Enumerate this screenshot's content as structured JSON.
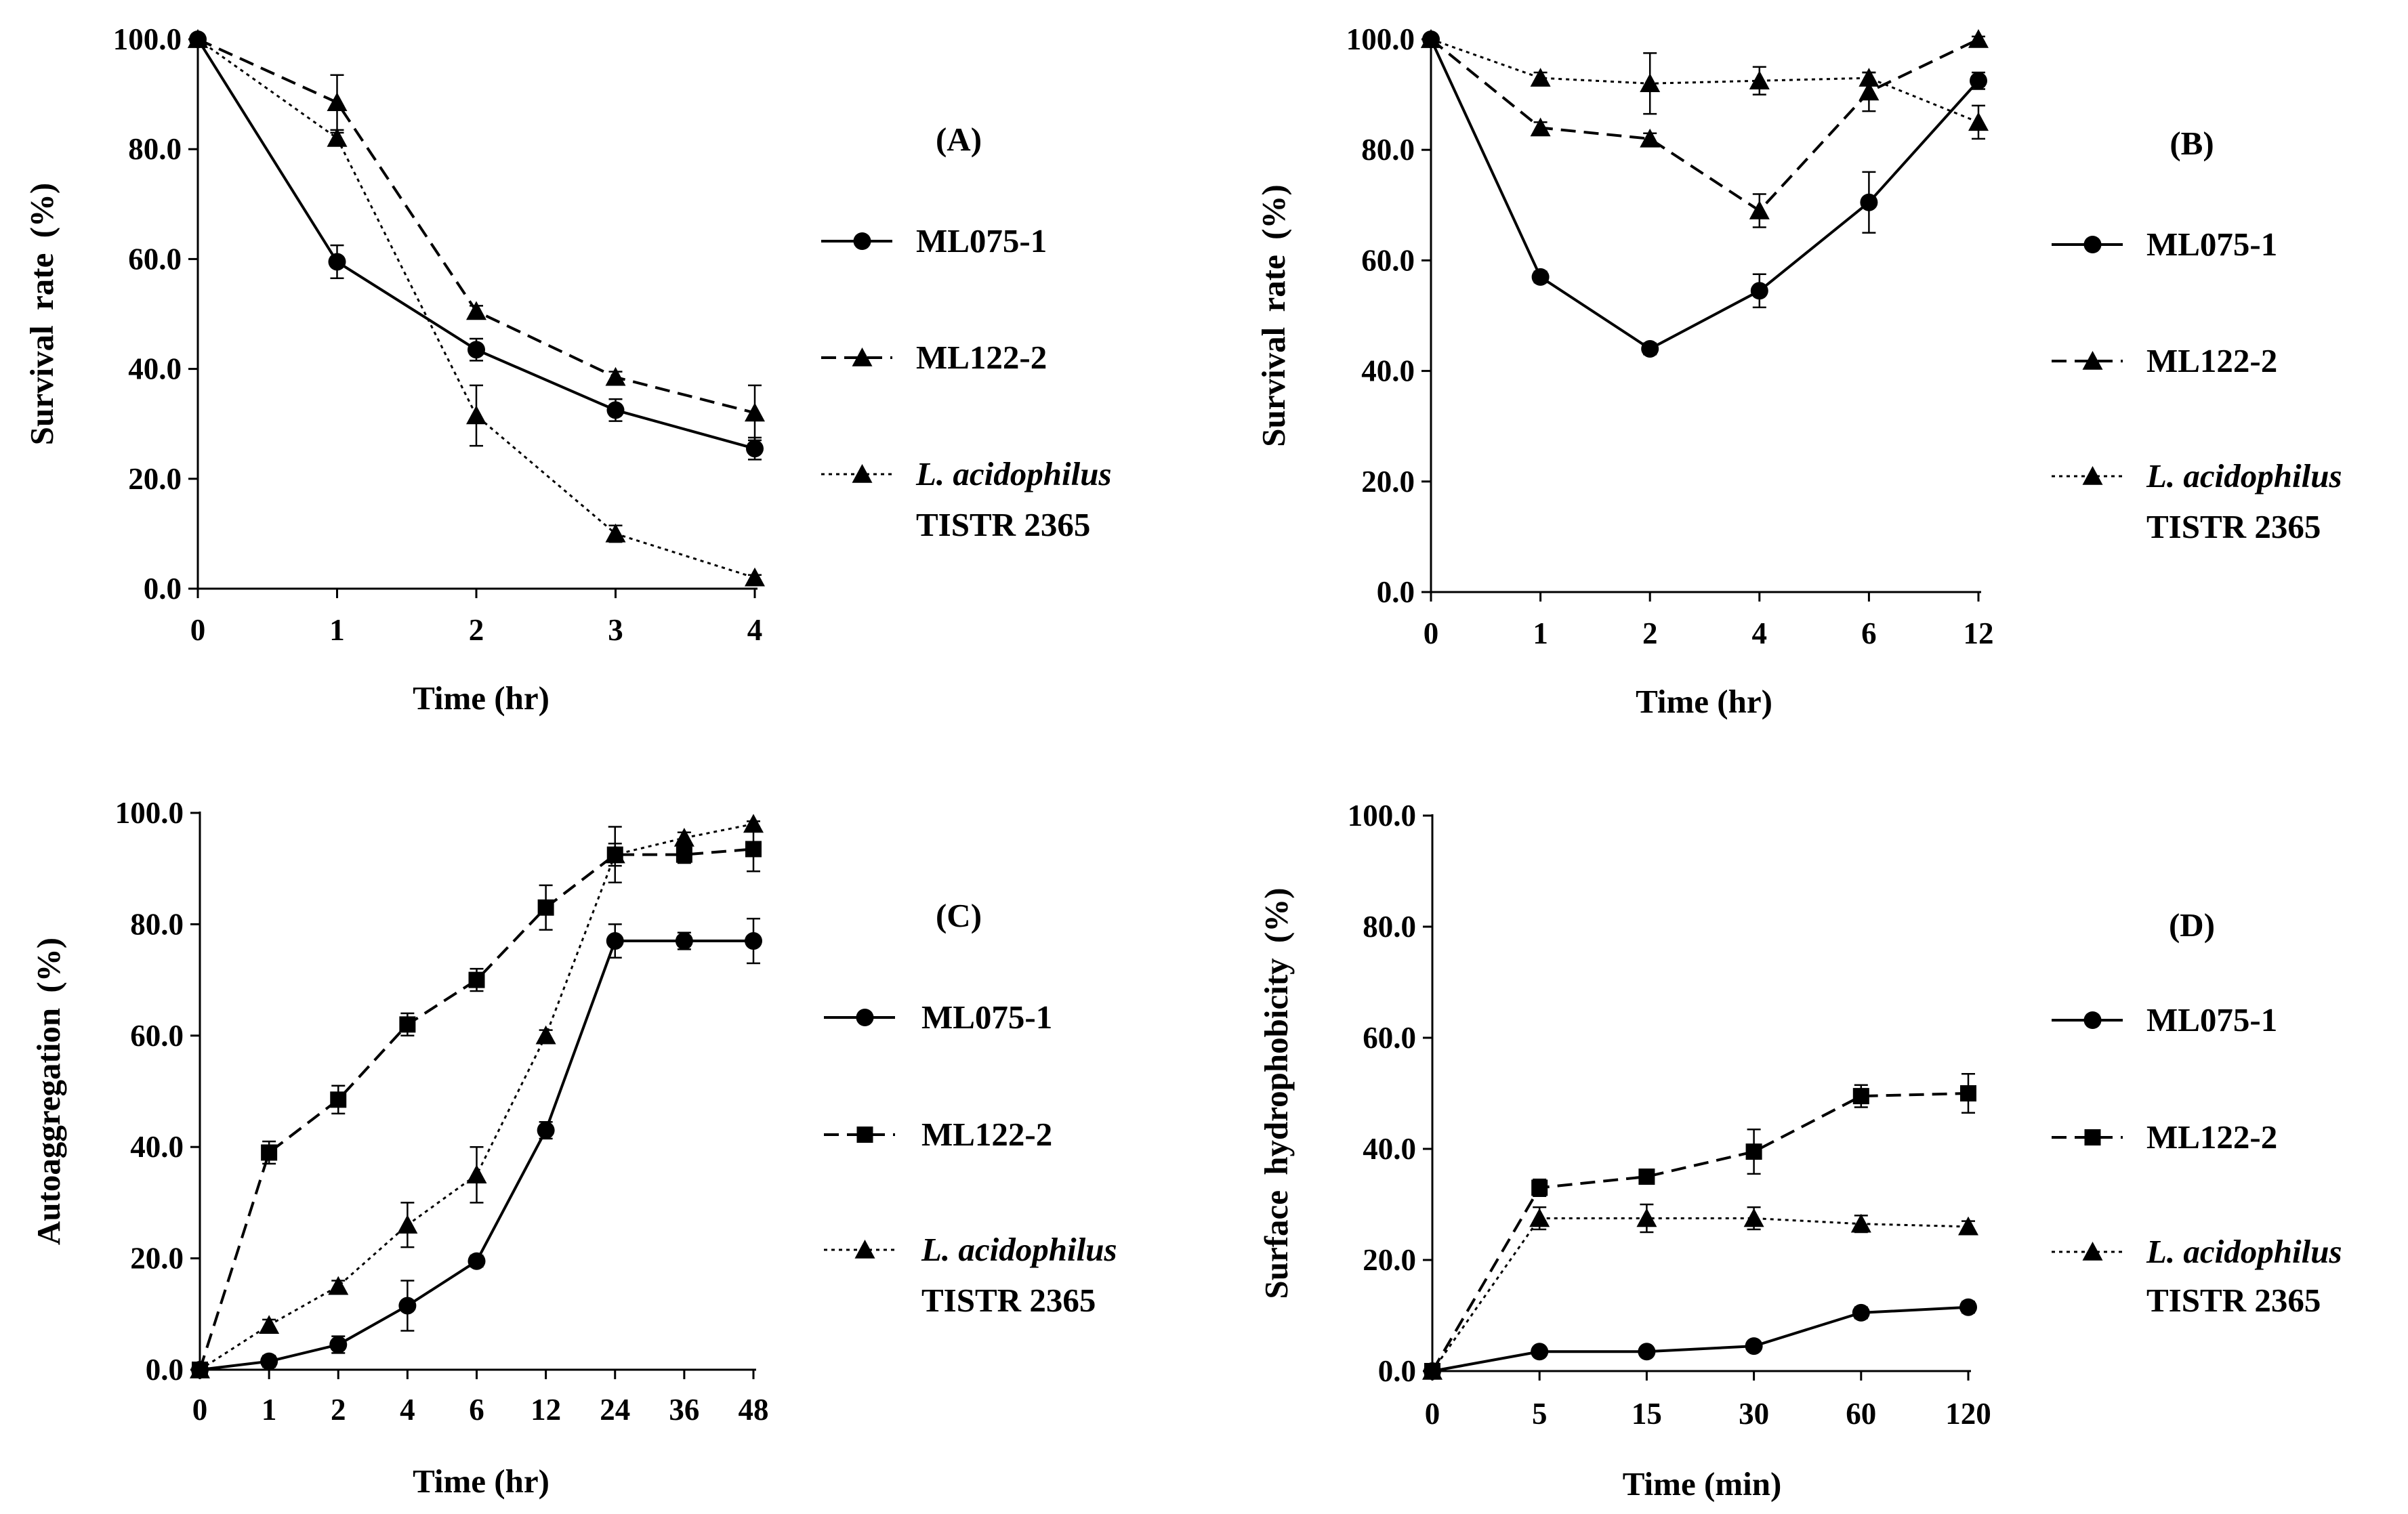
{
  "chart_data": [
    {
      "panel": "(A)",
      "type": "line",
      "xlabel": "Time (hr)",
      "ylabel": "Survival rate (%)",
      "ylim": [
        0,
        100
      ],
      "categories": [
        "0",
        "1",
        "2",
        "3",
        "4"
      ],
      "yticks": [
        "0.0",
        "20.0",
        "40.0",
        "60.0",
        "80.0",
        "100.0"
      ],
      "series": [
        {
          "name": "ML075-1",
          "style": "solid",
          "marker": "circle",
          "values": [
            100,
            59.5,
            43.5,
            32.5,
            25.5
          ],
          "errors": [
            0,
            3,
            2,
            2,
            2
          ]
        },
        {
          "name": "ML122-2",
          "style": "dashed",
          "marker": "triangle",
          "values": [
            100,
            88.5,
            50.5,
            38.5,
            32
          ],
          "errors": [
            0,
            5,
            1,
            1,
            5
          ]
        },
        {
          "name": "L. acidophilus",
          "name_line2": "TISTR 2365",
          "style": "dotted",
          "marker": "triangle",
          "values": [
            100,
            82,
            31.5,
            10,
            2
          ],
          "errors": [
            0,
            1,
            5.5,
            1.5,
            0.5
          ]
        }
      ]
    },
    {
      "panel": "(B)",
      "type": "line",
      "xlabel": "Time (hr)",
      "ylabel": "Survival rate (%)",
      "ylim": [
        0,
        100
      ],
      "categories": [
        "0",
        "1",
        "2",
        "4",
        "6",
        "12"
      ],
      "yticks": [
        "0.0",
        "20.0",
        "40.0",
        "60.0",
        "80.0",
        "100.0"
      ],
      "series": [
        {
          "name": "ML075-1",
          "style": "solid",
          "marker": "circle",
          "values": [
            100,
            57,
            44,
            54.5,
            70.5,
            92.5
          ],
          "errors": [
            0,
            1,
            1,
            3,
            5.5,
            1.5
          ]
        },
        {
          "name": "ML122-2",
          "style": "dashed",
          "marker": "triangle",
          "values": [
            100,
            84,
            82,
            69,
            90.5,
            100
          ],
          "errors": [
            0,
            1,
            1,
            3,
            3.5,
            0.5
          ]
        },
        {
          "name": "L. acidophilus",
          "name_line2": "TISTR 2365",
          "style": "dotted",
          "marker": "triangle",
          "values": [
            100,
            93,
            92,
            92.5,
            93,
            85
          ],
          "errors": [
            0,
            1,
            5.5,
            2.5,
            1,
            3
          ]
        }
      ]
    },
    {
      "panel": "(C)",
      "type": "line",
      "xlabel": "Time (hr)",
      "ylabel": "Autoaggregation (%)",
      "ylim": [
        0,
        100
      ],
      "categories": [
        "0",
        "1",
        "2",
        "4",
        "6",
        "12",
        "24",
        "36",
        "48"
      ],
      "yticks": [
        "0.0",
        "20.0",
        "40.0",
        "60.0",
        "80.0",
        "100.0"
      ],
      "series": [
        {
          "name": "ML075-1",
          "style": "solid",
          "marker": "circle",
          "values": [
            0,
            1.5,
            4.5,
            11.5,
            19.5,
            43,
            77,
            77,
            77
          ],
          "errors": [
            0,
            1,
            1.5,
            4.5,
            1,
            1.5,
            3,
            1.5,
            4
          ]
        },
        {
          "name": "ML122-2",
          "style": "dashed",
          "marker": "square",
          "values": [
            0,
            39,
            48.5,
            62,
            70,
            83,
            92.5,
            92.5,
            93.5
          ],
          "errors": [
            0,
            2,
            2.5,
            2,
            2,
            4,
            2,
            1.5,
            4
          ]
        },
        {
          "name": "L. acidophilus",
          "name_line2": "TISTR 2365",
          "style": "dotted",
          "marker": "triangle",
          "values": [
            0,
            8,
            15,
            26,
            35,
            60,
            92.5,
            95.5,
            98
          ],
          "errors": [
            0,
            1,
            1,
            4,
            5,
            1,
            5,
            1,
            0.5
          ]
        }
      ]
    },
    {
      "panel": "(D)",
      "type": "line",
      "xlabel": "Time (min)",
      "ylabel": "Surface hydrophobicity (%)",
      "ylim": [
        0,
        100
      ],
      "categories": [
        "0",
        "5",
        "15",
        "30",
        "60",
        "120"
      ],
      "yticks": [
        "0.0",
        "20.0",
        "40.0",
        "60.0",
        "80.0",
        "100.0"
      ],
      "series": [
        {
          "name": "ML075-1",
          "style": "solid",
          "marker": "circle",
          "values": [
            0,
            3.5,
            3.5,
            4.5,
            10.5,
            11.5
          ],
          "errors": [
            0,
            0.5,
            0.5,
            0.5,
            1,
            1
          ]
        },
        {
          "name": "ML122-2",
          "style": "dashed",
          "marker": "square",
          "values": [
            0,
            33,
            35,
            39.5,
            49.5,
            50
          ],
          "errors": [
            0,
            1.5,
            1,
            4,
            2,
            3.5
          ]
        },
        {
          "name": "L. acidophilus",
          "name_line2": "TISTR 2365",
          "style": "dotted",
          "marker": "triangle",
          "values": [
            0,
            27.5,
            27.5,
            27.5,
            26.5,
            26
          ],
          "errors": [
            0,
            2,
            2.5,
            2,
            1.5,
            1
          ]
        }
      ]
    }
  ]
}
